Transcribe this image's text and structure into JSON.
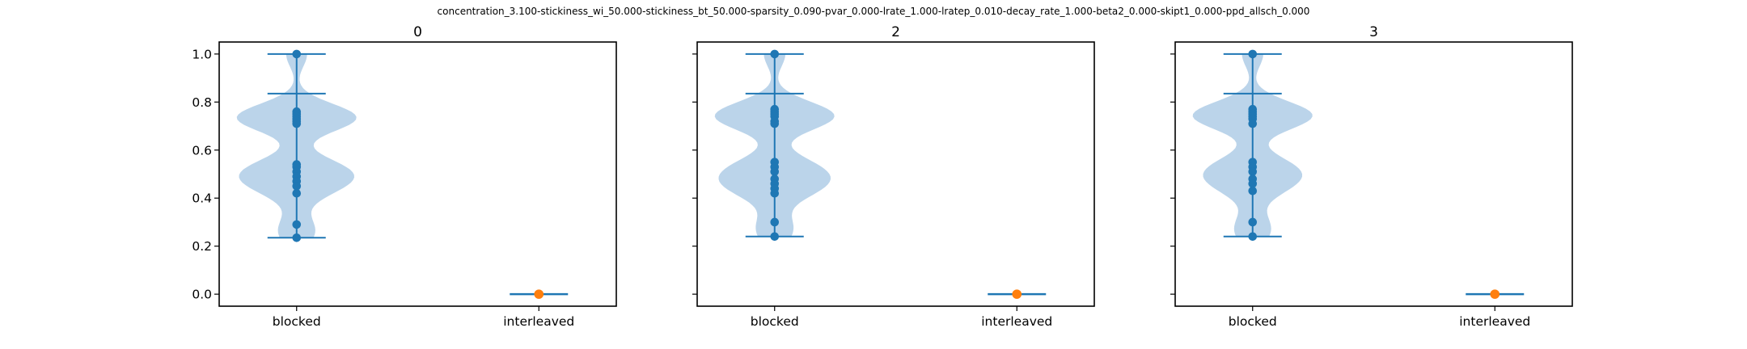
{
  "figure": {
    "suptitle": "concentration_3.100-stickiness_wi_50.000-stickiness_bt_50.000-sparsity_0.090-pvar_0.000-lrate_1.000-lratep_0.010-decay_rate_1.000-beta2_0.000-skipt1_0.000-ppd_allsch_0.000"
  },
  "colors": {
    "blocked": "#1f77b4",
    "interleaved": "#ff7f0e",
    "violin_fill": "#a8c8e4",
    "axes": "#000000"
  },
  "chart_data": [
    {
      "type": "violin",
      "title": "0",
      "categories": [
        "blocked",
        "interleaved"
      ],
      "ylim": [
        -0.05,
        1.05
      ],
      "yticks": [
        "0.0",
        "0.2",
        "0.4",
        "0.6",
        "0.8",
        "1.0"
      ],
      "show_ytick_labels": true,
      "grid": false,
      "series": [
        {
          "category": "blocked",
          "min": 0.235,
          "max": 1.0,
          "mean": 0.835,
          "points": [
            1.0,
            0.76,
            0.75,
            0.74,
            0.73,
            0.72,
            0.71,
            0.54,
            0.53,
            0.51,
            0.49,
            0.47,
            0.45,
            0.42,
            0.29,
            0.235
          ]
        },
        {
          "category": "interleaved",
          "min": 0.0,
          "max": 0.0,
          "mean": 0.0,
          "points": [
            0.0
          ]
        }
      ]
    },
    {
      "type": "violin",
      "title": "2",
      "categories": [
        "blocked",
        "interleaved"
      ],
      "ylim": [
        -0.05,
        1.05
      ],
      "yticks": [
        "0.0",
        "0.2",
        "0.4",
        "0.6",
        "0.8",
        "1.0"
      ],
      "show_ytick_labels": false,
      "grid": false,
      "series": [
        {
          "category": "blocked",
          "min": 0.24,
          "max": 1.0,
          "mean": 0.835,
          "points": [
            1.0,
            0.77,
            0.76,
            0.75,
            0.74,
            0.72,
            0.71,
            0.55,
            0.53,
            0.51,
            0.48,
            0.46,
            0.44,
            0.42,
            0.3,
            0.24
          ]
        },
        {
          "category": "interleaved",
          "min": 0.0,
          "max": 0.0,
          "mean": 0.0,
          "points": [
            0.0
          ]
        }
      ]
    },
    {
      "type": "violin",
      "title": "3",
      "categories": [
        "blocked",
        "interleaved"
      ],
      "ylim": [
        -0.05,
        1.05
      ],
      "yticks": [
        "0.0",
        "0.2",
        "0.4",
        "0.6",
        "0.8",
        "1.0"
      ],
      "show_ytick_labels": false,
      "grid": false,
      "series": [
        {
          "category": "blocked",
          "min": 0.24,
          "max": 1.0,
          "mean": 0.835,
          "points": [
            1.0,
            0.77,
            0.76,
            0.75,
            0.74,
            0.73,
            0.71,
            0.55,
            0.53,
            0.51,
            0.48,
            0.46,
            0.43,
            0.3,
            0.24
          ]
        },
        {
          "category": "interleaved",
          "min": 0.0,
          "max": 0.0,
          "mean": 0.0,
          "points": [
            0.0
          ]
        }
      ]
    }
  ]
}
